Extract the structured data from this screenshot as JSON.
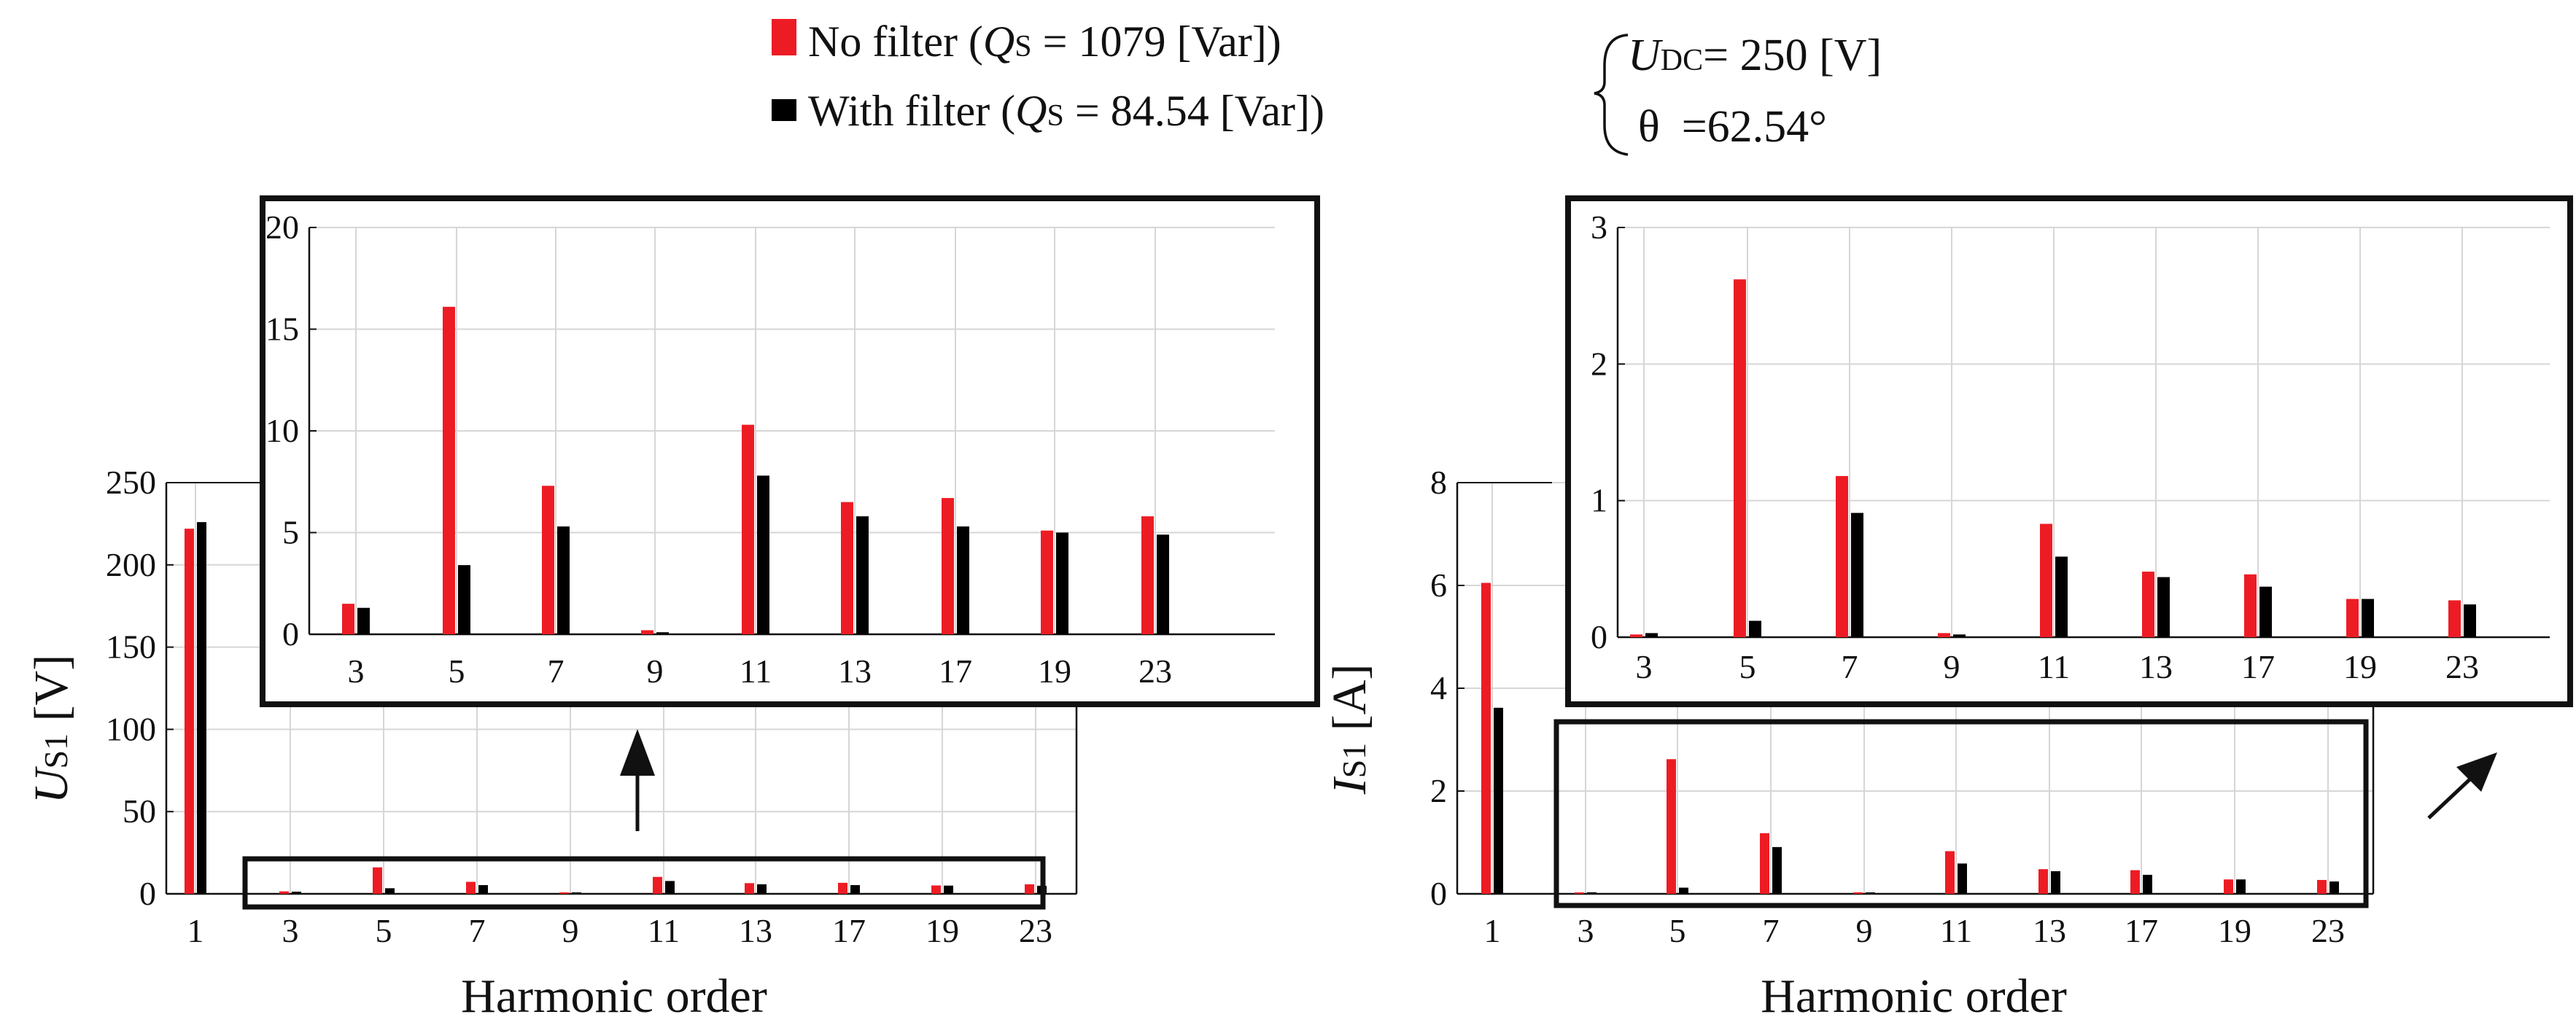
{
  "legend": {
    "no_filter": {
      "color": "#ed1c24",
      "label_start": "No filter (",
      "q_sym": "Q",
      "q_sub": "S",
      "label_end": " = 1079 [Var])"
    },
    "with_filter": {
      "color": "#000000",
      "label_start": "With filter (",
      "q_sym": "Q",
      "q_sub": "S",
      "label_end": " = 84.54 [Var])"
    }
  },
  "conditions": {
    "u_sym": "U",
    "u_sub": "DC",
    "u_value": "= 250 [V]",
    "theta_sym": "θ",
    "theta_value": "=62.54°"
  },
  "chart_data": [
    {
      "id": "voltage-main",
      "type": "bar",
      "categories": [
        "1",
        "3",
        "5",
        "7",
        "9",
        "11",
        "13",
        "17",
        "19",
        "23"
      ],
      "series": [
        {
          "name": "No filter",
          "values": [
            222,
            1.5,
            16.1,
            7.3,
            0.2,
            10.3,
            6.5,
            6.7,
            5.1,
            5.8
          ]
        },
        {
          "name": "With filter",
          "values": [
            226,
            1.3,
            3.4,
            5.3,
            0.1,
            7.8,
            5.8,
            5.3,
            5.0,
            4.9
          ]
        }
      ],
      "ylim": [
        0,
        250
      ],
      "yticks": [
        "0",
        "50",
        "100",
        "150",
        "200",
        "250"
      ],
      "ylabel_sym": "U",
      "ylabel_sub": "S1",
      "ylabel_unit": " [V]",
      "xlabel": "Harmonic order",
      "grid": true
    },
    {
      "id": "voltage-inset",
      "type": "bar",
      "categories": [
        "3",
        "5",
        "7",
        "9",
        "11",
        "13",
        "17",
        "19",
        "23"
      ],
      "series": [
        {
          "name": "No filter",
          "values": [
            1.5,
            16.1,
            7.3,
            0.2,
            10.3,
            6.5,
            6.7,
            5.1,
            5.8
          ]
        },
        {
          "name": "With filter",
          "values": [
            1.3,
            3.4,
            5.3,
            0.1,
            7.8,
            5.8,
            5.3,
            5.0,
            4.9
          ]
        }
      ],
      "ylim": [
        0,
        20
      ],
      "yticks": [
        "0",
        "5",
        "10",
        "15",
        "20"
      ],
      "grid": true
    },
    {
      "id": "current-main",
      "type": "bar",
      "categories": [
        "1",
        "3",
        "5",
        "7",
        "9",
        "11",
        "13",
        "17",
        "19",
        "23"
      ],
      "series": [
        {
          "name": "No filter",
          "values": [
            6.05,
            0.02,
            2.62,
            1.18,
            0.03,
            0.83,
            0.48,
            0.46,
            0.28,
            0.27
          ]
        },
        {
          "name": "With filter",
          "values": [
            3.62,
            0.03,
            0.12,
            0.91,
            0.02,
            0.59,
            0.44,
            0.37,
            0.28,
            0.24
          ]
        }
      ],
      "ylim": [
        0,
        8
      ],
      "yticks": [
        "0",
        "2",
        "4",
        "6",
        "8"
      ],
      "ylabel_sym": "I",
      "ylabel_sub": "S1",
      "ylabel_unit": " [A]",
      "xlabel": "Harmonic order",
      "grid": true
    },
    {
      "id": "current-inset",
      "type": "bar",
      "categories": [
        "3",
        "5",
        "7",
        "9",
        "11",
        "13",
        "17",
        "19",
        "23"
      ],
      "series": [
        {
          "name": "No filter",
          "values": [
            0.02,
            2.62,
            1.18,
            0.03,
            0.83,
            0.48,
            0.46,
            0.28,
            0.27
          ]
        },
        {
          "name": "With filter",
          "values": [
            0.03,
            0.12,
            0.91,
            0.02,
            0.59,
            0.44,
            0.37,
            0.28,
            0.24
          ]
        }
      ],
      "ylim": [
        0,
        3
      ],
      "yticks": [
        "0",
        "1",
        "2",
        "3"
      ],
      "grid": true
    }
  ]
}
